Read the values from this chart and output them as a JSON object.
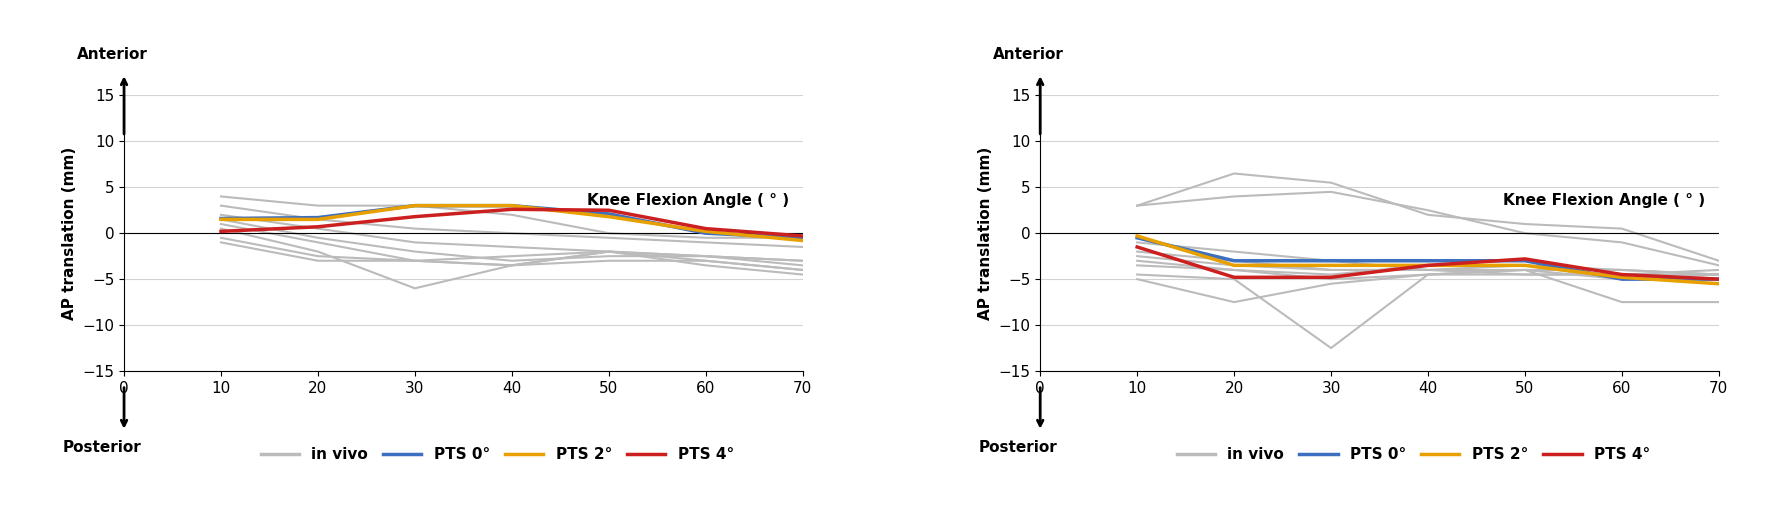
{
  "x_ticks": [
    0,
    10,
    20,
    30,
    40,
    50,
    60,
    70
  ],
  "xlim": [
    0,
    70
  ],
  "ylim": [
    -15,
    15
  ],
  "yticks": [
    -15,
    -10,
    -5,
    0,
    5,
    10,
    15
  ],
  "ylabel": "AP translation (mm)",
  "xlabel_annotation": "Knee Flexion Angle ( ° )",
  "anterior_label": "Anterior",
  "posterior_label": "Posterior",
  "left_PTS0": [
    1.6,
    1.7,
    3.0,
    3.0,
    2.1,
    0.0,
    -0.5
  ],
  "left_PTS2": [
    1.5,
    1.5,
    3.0,
    3.0,
    1.8,
    0.2,
    -0.8
  ],
  "left_PTS4": [
    0.2,
    0.7,
    1.8,
    2.6,
    2.5,
    0.5,
    -0.3
  ],
  "left_invivo": [
    [
      4.0,
      3.0,
      3.0,
      2.0,
      0.0,
      -0.5,
      -0.5
    ],
    [
      3.0,
      1.5,
      0.5,
      0.0,
      -0.5,
      -1.0,
      -1.5
    ],
    [
      2.0,
      0.5,
      -1.0,
      -1.5,
      -2.0,
      -2.5,
      -3.0
    ],
    [
      1.5,
      -0.5,
      -2.0,
      -3.0,
      -2.5,
      -2.5,
      -3.0
    ],
    [
      1.0,
      -1.0,
      -3.0,
      -3.5,
      -2.0,
      -2.5,
      -3.5
    ],
    [
      0.5,
      -2.0,
      -6.0,
      -3.5,
      -2.0,
      -3.0,
      -4.0
    ],
    [
      -0.5,
      -2.5,
      -3.0,
      -2.5,
      -2.0,
      -3.5,
      -4.5
    ],
    [
      -1.0,
      -3.0,
      -3.0,
      -3.5,
      -3.0,
      -3.0,
      -4.0
    ]
  ],
  "right_PTS0": [
    -0.5,
    -3.0,
    -3.0,
    -3.0,
    -3.0,
    -5.0,
    -5.0
  ],
  "right_PTS2": [
    -0.3,
    -3.5,
    -3.5,
    -3.5,
    -3.5,
    -4.8,
    -5.5
  ],
  "right_PTS4": [
    -1.5,
    -4.8,
    -4.8,
    -3.5,
    -2.8,
    -4.5,
    -5.0
  ],
  "right_invivo": [
    [
      3.0,
      6.5,
      5.5,
      2.0,
      1.0,
      0.5,
      -3.0
    ],
    [
      3.0,
      4.0,
      4.5,
      2.5,
      0.0,
      -1.0,
      -3.5
    ],
    [
      -1.0,
      -2.0,
      -3.0,
      -4.0,
      -4.0,
      -4.0,
      -4.5
    ],
    [
      -2.0,
      -3.0,
      -4.0,
      -4.0,
      -3.5,
      -4.0,
      -4.5
    ],
    [
      -2.5,
      -3.5,
      -4.0,
      -4.0,
      -4.5,
      -4.5,
      -4.5
    ],
    [
      -3.0,
      -4.0,
      -4.5,
      -3.5,
      -3.5,
      -5.0,
      -4.5
    ],
    [
      -3.5,
      -4.0,
      -5.0,
      -4.5,
      -4.5,
      -4.5,
      -4.0
    ],
    [
      -4.5,
      -5.0,
      -12.5,
      -4.5,
      -4.0,
      -5.0,
      -5.0
    ],
    [
      -5.0,
      -7.5,
      -5.5,
      -4.5,
      -4.0,
      -7.5,
      -7.5
    ]
  ],
  "color_PTS0": "#3C6FBF",
  "color_PTS2": "#E8A000",
  "color_PTS4": "#CC2020",
  "color_invivo": "#BBBBBB",
  "linewidth_pts": 2.5,
  "linewidth_invivo": 1.5,
  "background": "#FFFFFF"
}
